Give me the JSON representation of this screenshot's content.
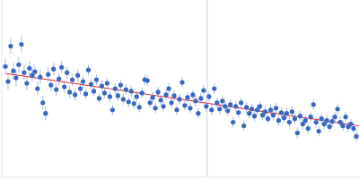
{
  "chart_data": {
    "type": "scatter",
    "tick_labels": false,
    "grid": false,
    "xlim": [
      0,
      400
    ],
    "ylim": [
      0,
      200
    ],
    "reference_x": 230,
    "reference_color": "#c8d2e6",
    "x": [
      4,
      7,
      10,
      13,
      16,
      19,
      22,
      25,
      28,
      31,
      34,
      37,
      40,
      43,
      46,
      49,
      52,
      55,
      58,
      61,
      64,
      67,
      70,
      73,
      76,
      79,
      82,
      85,
      88,
      91,
      94,
      97,
      100,
      103,
      106,
      109,
      112,
      115,
      118,
      121,
      124,
      127,
      130,
      133,
      136,
      139,
      142,
      145,
      148,
      151,
      154,
      157,
      160,
      163,
      166,
      169,
      172,
      175,
      178,
      181,
      184,
      187,
      190,
      193,
      196,
      199,
      202,
      205,
      208,
      211,
      214,
      217,
      220,
      223,
      226,
      229,
      232,
      235,
      238,
      241,
      244,
      247,
      250,
      253,
      256,
      259,
      262,
      265,
      268,
      271,
      274,
      277,
      280,
      283,
      286,
      289,
      292,
      295,
      298,
      301,
      304,
      307,
      310,
      313,
      316,
      319,
      322,
      325,
      328,
      331,
      334,
      337,
      340,
      343,
      346,
      349,
      352,
      355,
      358,
      361,
      364,
      367,
      370,
      373,
      376,
      379,
      382,
      385,
      388,
      391,
      394,
      397
    ],
    "series": [
      {
        "type": "scatter",
        "marker": "circle",
        "color": "#3a68c0",
        "values": [
          125,
          108,
          148,
          120,
          112,
          127,
          150,
          118,
          106,
          123,
          115,
          119,
          100,
          113,
          84,
          72,
          116,
          104,
          122,
          99,
          111,
          124,
          102,
          118,
          96,
          110,
          93,
          115,
          100,
          108,
          94,
          121,
          105,
          97,
          110,
          89,
          103,
          95,
          106,
          91,
          76,
          100,
          92,
          104,
          88,
          99,
          85,
          97,
          83,
          91,
          79,
          95,
          110,
          109,
          84,
          90,
          78,
          96,
          87,
          80,
          93,
          100,
          84,
          92,
          76,
          88,
          107,
          81,
          90,
          78,
          93,
          86,
          72,
          89,
          98,
          80,
          91,
          76,
          100,
          84,
          77,
          86,
          80,
          75,
          82,
          62,
          80,
          73,
          84,
          58,
          79,
          72,
          77,
          69,
          76,
          80,
          70,
          74,
          66,
          76,
          70,
          78,
          64,
          73,
          67,
          72,
          62,
          74,
          66,
          50,
          69,
          60,
          64,
          55,
          68,
          82,
          62,
          52,
          66,
          60,
          64,
          57,
          63,
          68,
          77,
          62,
          58,
          68,
          57,
          60,
          55,
          46
        ],
        "errors": [
          9,
          9,
          9,
          9,
          9,
          9,
          9,
          8,
          8,
          8,
          8,
          8,
          8,
          8,
          8,
          8,
          8,
          7,
          7,
          7,
          7,
          7,
          7,
          7,
          7,
          7,
          7,
          7,
          7,
          7,
          6,
          6,
          6,
          6,
          6,
          6,
          6,
          6,
          6,
          6,
          6,
          6,
          6,
          6,
          6,
          6,
          6,
          6,
          6,
          6,
          6,
          6,
          6,
          6,
          6,
          6,
          6,
          6,
          6,
          6,
          6,
          6,
          6,
          6,
          6,
          6,
          6,
          6,
          6,
          6,
          6,
          6,
          6,
          6,
          6,
          6,
          6,
          6,
          6,
          6,
          6,
          6,
          6,
          6,
          6,
          6,
          6,
          6,
          6,
          6,
          6,
          6,
          6,
          6,
          6,
          6,
          6,
          6,
          6,
          6,
          6,
          6,
          6,
          6,
          6,
          6,
          6,
          6,
          6,
          6,
          6,
          6,
          6,
          6,
          6,
          6,
          6,
          6,
          6,
          6,
          6,
          6,
          6,
          6,
          6,
          6,
          6,
          6,
          6,
          6,
          6,
          6
        ]
      },
      {
        "type": "line",
        "line_style": "solid",
        "color": "#e0303a",
        "x": [
          5,
          100,
          200,
          300,
          400
        ],
        "values": [
          117,
          103,
          88,
          73,
          58
        ]
      }
    ]
  }
}
